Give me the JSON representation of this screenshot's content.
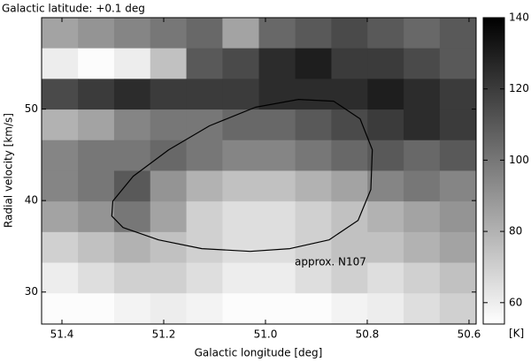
{
  "chart_data": {
    "type": "heatmap",
    "title": "Galactic latitude: +0.1 deg",
    "x_label": "Galactic longitude [deg]",
    "y_label": "Radial velocity [km/s]",
    "colorbar_label": "[K]",
    "annotation": "approx. N107",
    "xlim": [
      51.44,
      50.586
    ],
    "ylim": [
      26.5,
      60
    ],
    "xticks": [
      51.4,
      51.2,
      {
        "value": 51,
        "label": "51.0"
      },
      50.8,
      50.6
    ],
    "yticks": [
      30,
      40,
      50
    ],
    "clim": [
      54,
      140
    ],
    "cticks": [
      60,
      80,
      100,
      120,
      140
    ],
    "colormap": {
      "low": "#ffffff",
      "high": "#000000"
    },
    "x": [
      51.404,
      51.333,
      51.262,
      51.191,
      51.12,
      51.049,
      50.977,
      50.906,
      50.835,
      50.764,
      50.693,
      50.622
    ],
    "y": [
      58.33,
      54.98,
      51.63,
      48.28,
      44.93,
      41.58,
      38.23,
      34.88,
      31.53,
      28.18
    ],
    "z": [
      [
        85,
        90,
        95,
        100,
        105,
        85,
        105,
        110,
        115,
        110,
        105,
        110
      ],
      [
        60,
        55,
        60,
        75,
        110,
        115,
        125,
        130,
        120,
        120,
        115,
        110
      ],
      [
        115,
        120,
        125,
        120,
        120,
        120,
        125,
        125,
        125,
        130,
        125,
        120
      ],
      [
        80,
        85,
        95,
        100,
        100,
        105,
        105,
        110,
        115,
        120,
        125,
        120
      ],
      [
        95,
        100,
        100,
        105,
        100,
        95,
        95,
        100,
        105,
        110,
        105,
        110
      ],
      [
        95,
        100,
        110,
        90,
        80,
        75,
        75,
        80,
        85,
        95,
        100,
        95
      ],
      [
        85,
        90,
        100,
        85,
        70,
        65,
        65,
        70,
        75,
        80,
        85,
        90
      ],
      [
        70,
        75,
        80,
        75,
        70,
        65,
        65,
        70,
        75,
        75,
        80,
        85
      ],
      [
        60,
        65,
        70,
        70,
        65,
        60,
        60,
        65,
        70,
        65,
        70,
        75
      ],
      [
        55,
        55,
        58,
        60,
        58,
        55,
        55,
        55,
        58,
        60,
        65,
        70
      ]
    ],
    "contour": {
      "x": [
        51.3,
        51.26,
        51.19,
        51.11,
        51.02,
        50.935,
        50.866,
        50.814,
        50.79,
        50.793,
        50.818,
        50.875,
        50.952,
        51.03,
        51.125,
        51.21,
        51.28,
        51.302
      ],
      "y": [
        39.95,
        42.66,
        45.56,
        48.17,
        50.2,
        51.06,
        50.87,
        48.94,
        45.56,
        41.21,
        37.83,
        35.7,
        34.74,
        34.45,
        34.74,
        35.7,
        37.05,
        38.31
      ]
    }
  }
}
